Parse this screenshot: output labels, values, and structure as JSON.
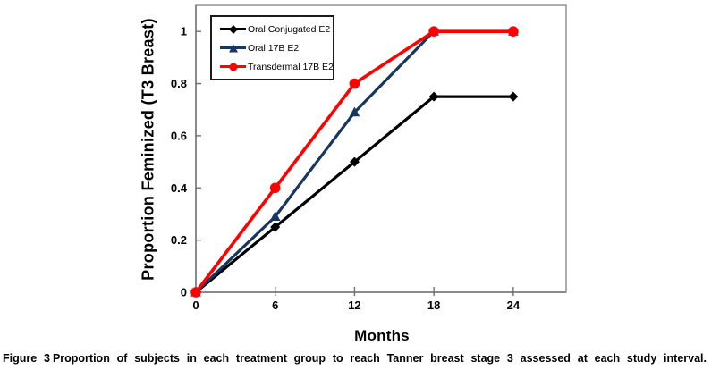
{
  "figure": {
    "caption_label": "Figure 3",
    "caption_text": "Proportion of subjects in each treatment group to reach Tanner breast stage 3 assessed at each study interval."
  },
  "chart_data": {
    "type": "line",
    "title": "",
    "xlabel": "Months",
    "ylabel": "Proportion Feminized (T3 Breast)",
    "x": [
      0,
      6,
      12,
      18,
      24
    ],
    "x_tick_labels": [
      "0",
      "6",
      "12",
      "18",
      "24"
    ],
    "y_ticks": [
      0,
      0.2,
      0.4,
      0.6,
      0.8,
      1
    ],
    "y_tick_labels": [
      "0",
      "0.2",
      "0.4",
      "0.6",
      "0.8",
      "1"
    ],
    "xlim": [
      0,
      28
    ],
    "ylim": [
      0,
      1.1
    ],
    "grid": false,
    "legend_position": "top-left-inside",
    "axis_color": "#8a8a8a",
    "series": [
      {
        "name": "Oral Conjugated E2",
        "color": "#000000",
        "marker": "diamond",
        "values": [
          0,
          0.25,
          0.5,
          0.75,
          0.75
        ]
      },
      {
        "name": "Oral 17B E2",
        "color": "#17375E",
        "marker": "triangle",
        "values": [
          0,
          0.29,
          0.69,
          1,
          1
        ]
      },
      {
        "name": "Transdermal 17B E2",
        "color": "#FF0000",
        "marker": "circle",
        "values": [
          0,
          0.4,
          0.8,
          1,
          1
        ]
      }
    ]
  }
}
